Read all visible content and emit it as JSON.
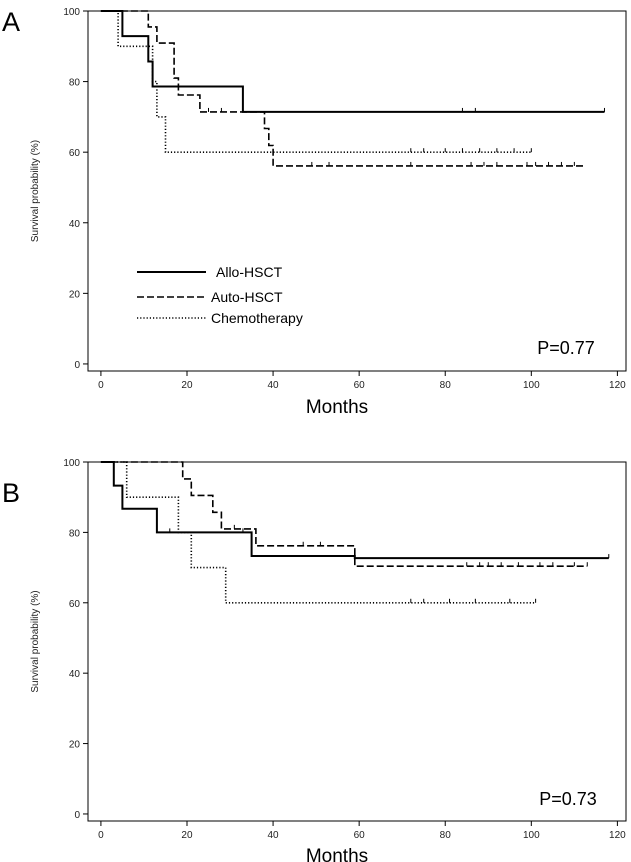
{
  "chart_data": [
    {
      "type": "line",
      "panel": "A",
      "pvalue": "P=0.77",
      "xlabel": "Months",
      "ylabel": "Survival probability (%)",
      "xlim": [
        -3,
        122
      ],
      "ylim": [
        -2,
        100
      ],
      "xticks": [
        0,
        20,
        40,
        60,
        80,
        100,
        120
      ],
      "yticks": [
        0,
        20,
        40,
        60,
        80,
        100
      ],
      "legend": "left, lower-middle",
      "series": [
        {
          "name": "Allo-HSCT",
          "style": "solid",
          "steps": [
            [
              0,
              100
            ],
            [
              5,
              100
            ],
            [
              5,
              92.9
            ],
            [
              11,
              92.9
            ],
            [
              11,
              85.7
            ],
            [
              12,
              85.7
            ],
            [
              12,
              78.6
            ],
            [
              33,
              78.6
            ],
            [
              33,
              71.4
            ],
            [
              117,
              71.4
            ]
          ],
          "censors": [
            [
              84,
              71.4
            ],
            [
              87,
              71.4
            ],
            [
              117,
              71.4
            ]
          ]
        },
        {
          "name": "Auto-HSCT",
          "style": "dashed",
          "steps": [
            [
              0,
              100
            ],
            [
              11,
              100
            ],
            [
              11,
              95.5
            ],
            [
              13,
              95.5
            ],
            [
              13,
              90.9
            ],
            [
              17,
              90.9
            ],
            [
              17,
              81
            ],
            [
              18,
              81
            ],
            [
              18,
              76.2
            ],
            [
              23,
              76.2
            ],
            [
              23,
              71.4
            ],
            [
              38,
              71.4
            ],
            [
              38,
              66.7
            ],
            [
              39,
              66.7
            ],
            [
              39,
              61.9
            ],
            [
              40,
              61.9
            ],
            [
              40,
              56.1
            ],
            [
              112,
              56.1
            ]
          ],
          "censors": [
            [
              25,
              71.4
            ],
            [
              28,
              71.4
            ],
            [
              49,
              56.1
            ],
            [
              53,
              56.1
            ],
            [
              72,
              56.1
            ],
            [
              86,
              56.1
            ],
            [
              89,
              56.1
            ],
            [
              92,
              56.1
            ],
            [
              99,
              56.1
            ],
            [
              101,
              56.1
            ],
            [
              104,
              56.1
            ],
            [
              107,
              56.1
            ],
            [
              110,
              56.1
            ]
          ]
        },
        {
          "name": "Chemotherapy",
          "style": "dotted",
          "steps": [
            [
              0,
              100
            ],
            [
              4,
              100
            ],
            [
              4,
              90
            ],
            [
              12,
              90
            ],
            [
              12,
              80
            ],
            [
              13,
              80
            ],
            [
              13,
              70
            ],
            [
              15,
              70
            ],
            [
              15,
              60
            ],
            [
              100,
              60
            ]
          ],
          "censors": [
            [
              72,
              60
            ],
            [
              75,
              60
            ],
            [
              80,
              60
            ],
            [
              84,
              60
            ],
            [
              88,
              60
            ],
            [
              92,
              60
            ],
            [
              96,
              60
            ],
            [
              100,
              60
            ]
          ]
        }
      ]
    },
    {
      "type": "line",
      "panel": "B",
      "pvalue": "P=0.73",
      "xlabel": "Months",
      "ylabel": "Survival probability (%)",
      "xlim": [
        -3,
        122
      ],
      "ylim": [
        -2,
        100
      ],
      "xticks": [
        0,
        20,
        40,
        60,
        80,
        100,
        120
      ],
      "yticks": [
        0,
        20,
        40,
        60,
        80,
        100
      ],
      "series": [
        {
          "name": "Allo-HSCT",
          "style": "solid",
          "steps": [
            [
              0,
              100
            ],
            [
              3,
              100
            ],
            [
              3,
              93.3
            ],
            [
              5,
              93.3
            ],
            [
              5,
              86.7
            ],
            [
              13,
              86.7
            ],
            [
              13,
              80
            ],
            [
              35,
              80
            ],
            [
              35,
              73.3
            ],
            [
              59,
              73.3
            ],
            [
              59,
              72.7
            ],
            [
              118,
              72.7
            ]
          ],
          "censors": [
            [
              16,
              80
            ],
            [
              33,
              80
            ],
            [
              118,
              72.7
            ]
          ]
        },
        {
          "name": "Auto-HSCT",
          "style": "dashed",
          "steps": [
            [
              0,
              100
            ],
            [
              19,
              100
            ],
            [
              19,
              95.2
            ],
            [
              21,
              95.2
            ],
            [
              21,
              90.5
            ],
            [
              26,
              90.5
            ],
            [
              26,
              85.7
            ],
            [
              28,
              85.7
            ],
            [
              28,
              81
            ],
            [
              36,
              81
            ],
            [
              36,
              76.2
            ],
            [
              59,
              76.2
            ],
            [
              59,
              70.4
            ],
            [
              113,
              70.4
            ]
          ],
          "censors": [
            [
              31,
              81
            ],
            [
              47,
              76.2
            ],
            [
              51,
              76.2
            ],
            [
              85,
              70.4
            ],
            [
              88,
              70.4
            ],
            [
              90,
              70.4
            ],
            [
              93,
              70.4
            ],
            [
              97,
              70.4
            ],
            [
              102,
              70.4
            ],
            [
              105,
              70.4
            ],
            [
              110,
              70.4
            ],
            [
              113,
              70.4
            ]
          ]
        },
        {
          "name": "Chemotherapy",
          "style": "dotted",
          "steps": [
            [
              0,
              100
            ],
            [
              6,
              100
            ],
            [
              6,
              90
            ],
            [
              18,
              90
            ],
            [
              18,
              80
            ],
            [
              21,
              80
            ],
            [
              21,
              70
            ],
            [
              29,
              70
            ],
            [
              29,
              60
            ],
            [
              101,
              60
            ]
          ],
          "censors": [
            [
              72,
              60
            ],
            [
              75,
              60
            ],
            [
              81,
              60
            ],
            [
              87,
              60
            ],
            [
              95,
              60
            ],
            [
              101,
              60
            ]
          ]
        }
      ]
    }
  ]
}
